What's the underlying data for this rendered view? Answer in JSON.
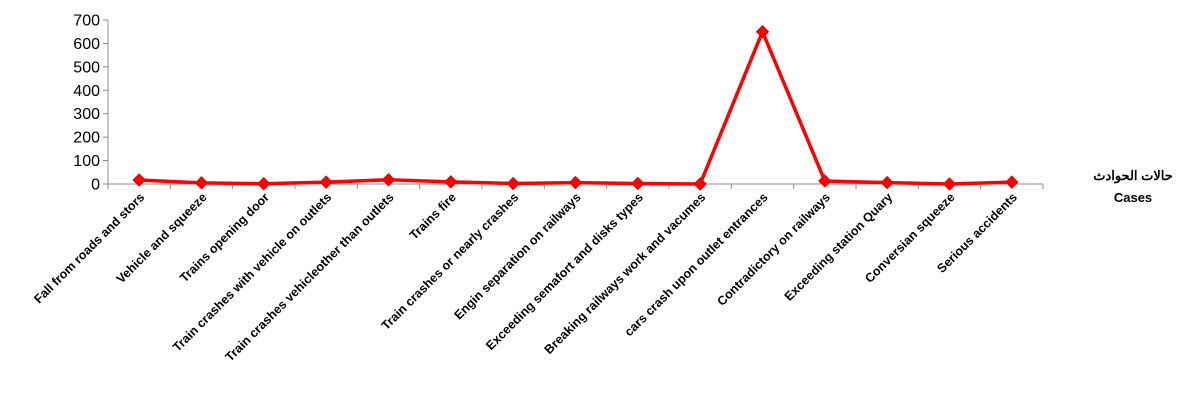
{
  "chart_data": {
    "type": "line",
    "title": "",
    "xlabel_ar": "حالات الحوادث",
    "xlabel_en": "Cases",
    "ylabel": "",
    "ylim": [
      0,
      700
    ],
    "yticks": [
      0,
      100,
      200,
      300,
      400,
      500,
      600,
      700
    ],
    "grid": false,
    "legend": "none",
    "categories": [
      "Fall from roads and stors",
      "Vehicle and squeeze",
      "Trains opening door",
      "Train crashes with vehicle on outlets",
      "Train crashes vehicleother than outlets",
      "Trains fire",
      "Train crashes or nearly crashes",
      "Engin separation on railways",
      "Exceeding semafort and disks types",
      "Breaking railways work and vacumes",
      "cars crash upon outlet entrances",
      "Contradictory on railways",
      "Exceeding station Quary",
      "Conversian squeeze",
      "Serious accidents"
    ],
    "series": [
      {
        "values": [
          17,
          5,
          1,
          8,
          18,
          9,
          2,
          6,
          2,
          0,
          650,
          13,
          6,
          0,
          8
        ],
        "color": "#ff0000",
        "marker": "diamond"
      }
    ]
  }
}
